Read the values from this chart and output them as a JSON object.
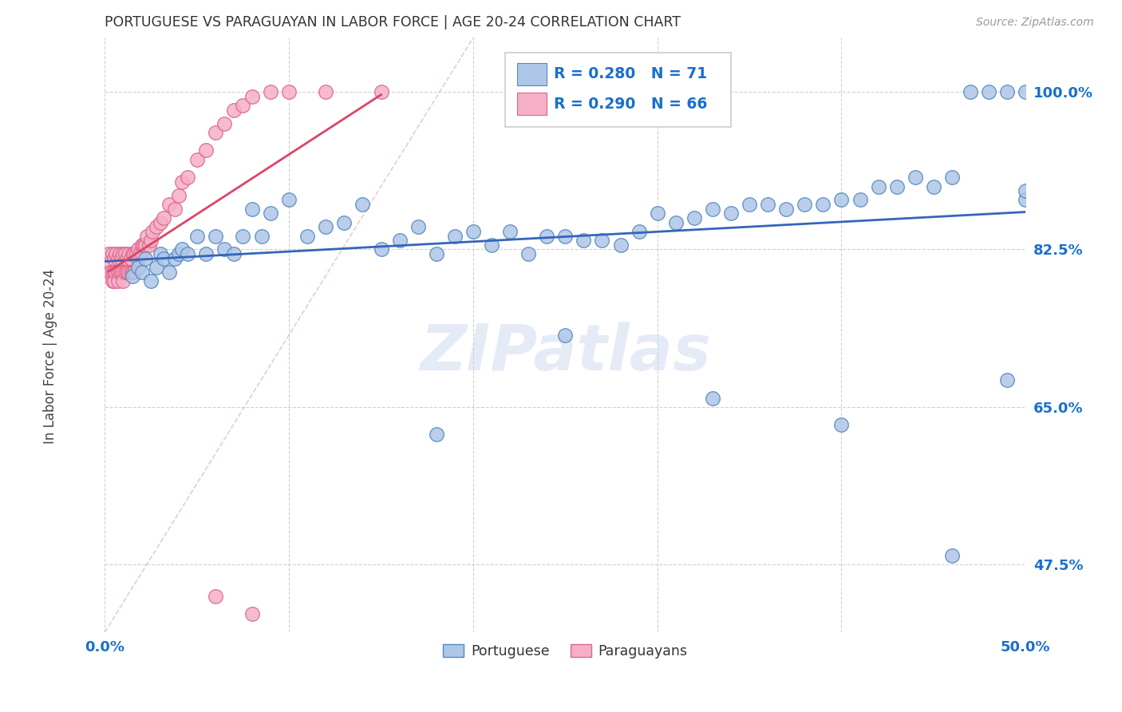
{
  "title": "PORTUGUESE VS PARAGUAYAN IN LABOR FORCE | AGE 20-24 CORRELATION CHART",
  "source": "Source: ZipAtlas.com",
  "ylabel": "In Labor Force | Age 20-24",
  "xlim": [
    0.0,
    0.5
  ],
  "ylim": [
    0.4,
    1.06
  ],
  "xticks": [
    0.0,
    0.1,
    0.2,
    0.3,
    0.4,
    0.5
  ],
  "xticklabels": [
    "0.0%",
    "",
    "",
    "",
    "",
    "50.0%"
  ],
  "ytick_positions": [
    0.475,
    0.65,
    0.825,
    1.0
  ],
  "ytick_labels": [
    "47.5%",
    "65.0%",
    "82.5%",
    "100.0%"
  ],
  "blue_R": 0.28,
  "blue_N": 71,
  "pink_R": 0.29,
  "pink_N": 66,
  "legend_color": "#1a6fcd",
  "watermark": "ZIPatlas",
  "blue_color": "#aec6e8",
  "pink_color": "#f5b0c8",
  "blue_edge": "#5588bb",
  "pink_edge": "#dd6688",
  "blue_line_color": "#3366bb",
  "pink_line_color": "#dd4466",
  "portuguese_x": [
    0.015,
    0.018,
    0.02,
    0.022,
    0.025,
    0.028,
    0.03,
    0.032,
    0.035,
    0.038,
    0.04,
    0.042,
    0.045,
    0.05,
    0.055,
    0.06,
    0.065,
    0.07,
    0.075,
    0.08,
    0.085,
    0.09,
    0.1,
    0.11,
    0.12,
    0.13,
    0.14,
    0.15,
    0.16,
    0.17,
    0.18,
    0.19,
    0.2,
    0.21,
    0.22,
    0.23,
    0.24,
    0.25,
    0.26,
    0.27,
    0.28,
    0.29,
    0.3,
    0.31,
    0.32,
    0.33,
    0.34,
    0.35,
    0.36,
    0.37,
    0.38,
    0.39,
    0.4,
    0.41,
    0.42,
    0.43,
    0.44,
    0.45,
    0.46,
    0.47,
    0.48,
    0.49,
    0.5,
    0.5,
    0.5,
    0.25,
    0.18,
    0.33,
    0.4,
    0.49,
    0.46
  ],
  "portuguese_y": [
    0.795,
    0.805,
    0.8,
    0.815,
    0.79,
    0.805,
    0.82,
    0.815,
    0.8,
    0.815,
    0.82,
    0.825,
    0.82,
    0.84,
    0.82,
    0.84,
    0.825,
    0.82,
    0.84,
    0.87,
    0.84,
    0.865,
    0.88,
    0.84,
    0.85,
    0.855,
    0.875,
    0.825,
    0.835,
    0.85,
    0.82,
    0.84,
    0.845,
    0.83,
    0.845,
    0.82,
    0.84,
    0.84,
    0.835,
    0.835,
    0.83,
    0.845,
    0.865,
    0.855,
    0.86,
    0.87,
    0.865,
    0.875,
    0.875,
    0.87,
    0.875,
    0.875,
    0.88,
    0.88,
    0.895,
    0.895,
    0.905,
    0.895,
    0.905,
    1.0,
    1.0,
    1.0,
    1.0,
    0.88,
    0.89,
    0.73,
    0.62,
    0.66,
    0.63,
    0.68,
    0.485
  ],
  "paraguayan_x": [
    0.002,
    0.003,
    0.003,
    0.004,
    0.004,
    0.004,
    0.005,
    0.005,
    0.005,
    0.006,
    0.006,
    0.007,
    0.007,
    0.007,
    0.008,
    0.008,
    0.009,
    0.009,
    0.01,
    0.01,
    0.01,
    0.011,
    0.011,
    0.012,
    0.012,
    0.013,
    0.013,
    0.014,
    0.014,
    0.015,
    0.015,
    0.016,
    0.016,
    0.017,
    0.018,
    0.018,
    0.019,
    0.02,
    0.02,
    0.021,
    0.022,
    0.023,
    0.024,
    0.025,
    0.026,
    0.028,
    0.03,
    0.032,
    0.035,
    0.038,
    0.04,
    0.042,
    0.045,
    0.05,
    0.055,
    0.06,
    0.065,
    0.07,
    0.075,
    0.08,
    0.09,
    0.1,
    0.12,
    0.15,
    0.06,
    0.08
  ],
  "paraguayan_y": [
    0.82,
    0.81,
    0.8,
    0.82,
    0.8,
    0.79,
    0.815,
    0.8,
    0.79,
    0.82,
    0.8,
    0.815,
    0.8,
    0.79,
    0.82,
    0.8,
    0.815,
    0.8,
    0.82,
    0.8,
    0.79,
    0.82,
    0.8,
    0.815,
    0.8,
    0.82,
    0.8,
    0.815,
    0.8,
    0.82,
    0.8,
    0.82,
    0.8,
    0.82,
    0.815,
    0.825,
    0.82,
    0.83,
    0.82,
    0.83,
    0.83,
    0.84,
    0.83,
    0.835,
    0.845,
    0.85,
    0.855,
    0.86,
    0.875,
    0.87,
    0.885,
    0.9,
    0.905,
    0.925,
    0.935,
    0.955,
    0.965,
    0.98,
    0.985,
    0.995,
    1.0,
    1.0,
    1.0,
    1.0,
    0.44,
    0.42
  ]
}
